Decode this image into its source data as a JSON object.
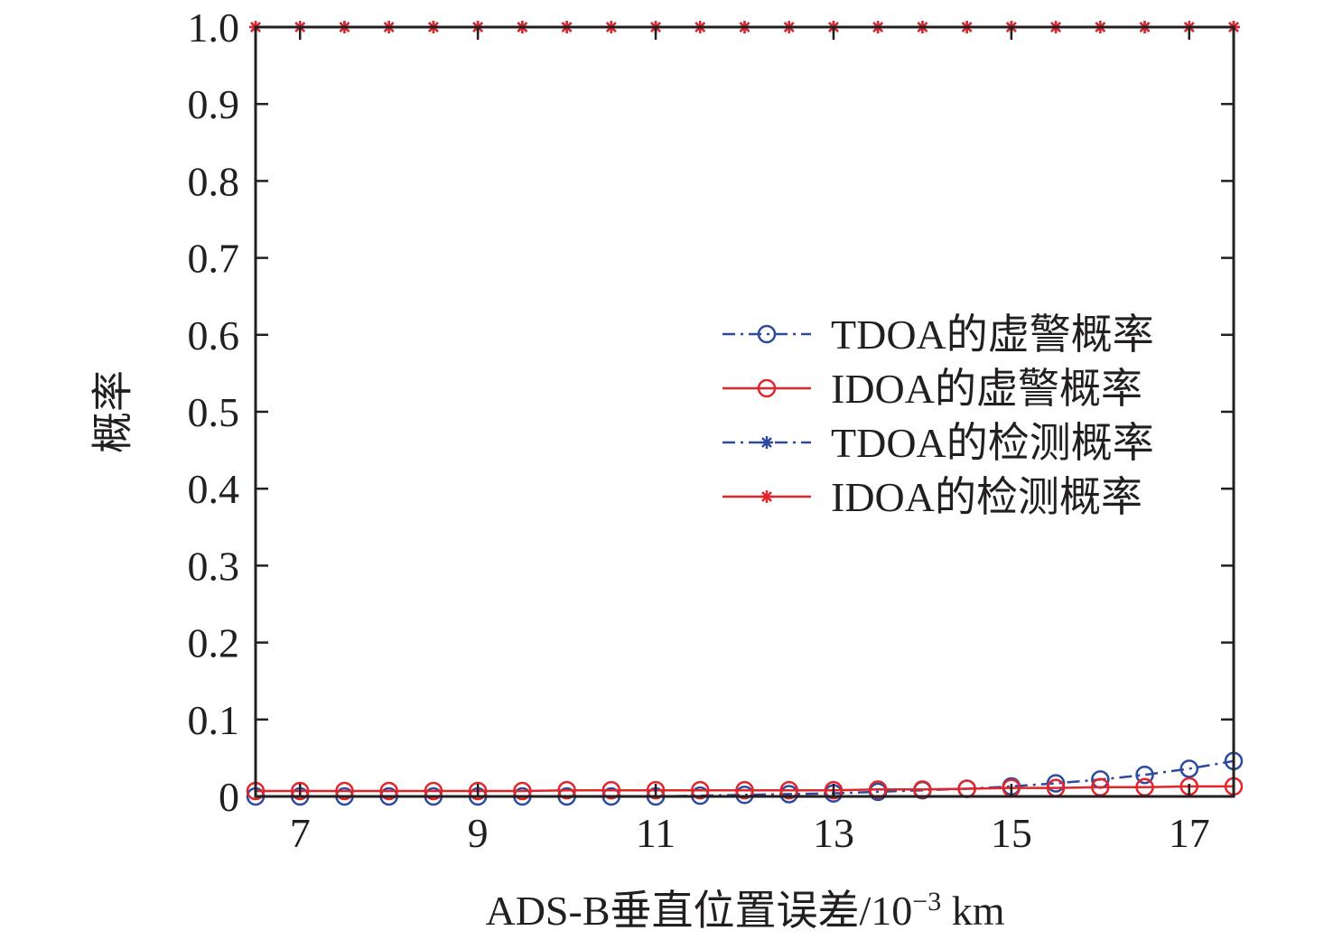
{
  "chart_data": {
    "type": "line",
    "xlabel": "ADS-B垂直位置误差/10",
    "xlabel_exponent": "−3",
    "xlabel_unit": " km",
    "ylabel": "概率",
    "xlim": [
      6.5,
      17.5
    ],
    "ylim": [
      0,
      1.0
    ],
    "x_ticks": [
      7,
      9,
      11,
      13,
      15,
      17
    ],
    "x_tick_labels": [
      "7",
      "9",
      "11",
      "13",
      "15",
      "17"
    ],
    "y_ticks": [
      0,
      0.1,
      0.2,
      0.3,
      0.4,
      0.5,
      0.6,
      0.7,
      0.8,
      0.9,
      1.0
    ],
    "y_tick_labels": [
      "0",
      "0.1",
      "0.2",
      "0.3",
      "0.4",
      "0.5",
      "0.6",
      "0.7",
      "0.8",
      "0.9",
      "1.0"
    ],
    "grid": false,
    "legend_position": "center-right",
    "x": [
      6.5,
      7,
      7.5,
      8,
      8.5,
      9,
      9.5,
      10,
      10.5,
      11,
      11.5,
      12,
      12.5,
      13,
      13.5,
      14,
      14.5,
      15,
      15.5,
      16,
      16.5,
      17,
      17.5
    ],
    "series": [
      {
        "name": "TDOA的虚警概率",
        "color": "#2e4a9e",
        "line_style": "dashdot",
        "marker": "circle",
        "values": [
          0,
          0,
          0,
          0,
          0,
          0,
          0,
          0,
          0,
          0,
          0.001,
          0.002,
          0.003,
          0.004,
          0.006,
          0.008,
          0.01,
          0.013,
          0.017,
          0.022,
          0.028,
          0.036,
          0.046
        ]
      },
      {
        "name": "IDOA的虚警概率",
        "color": "#e0262b",
        "line_style": "solid",
        "marker": "circle",
        "values": [
          0.007,
          0.007,
          0.007,
          0.007,
          0.007,
          0.007,
          0.007,
          0.008,
          0.008,
          0.008,
          0.008,
          0.008,
          0.008,
          0.008,
          0.009,
          0.009,
          0.01,
          0.011,
          0.011,
          0.012,
          0.012,
          0.013,
          0.013
        ]
      },
      {
        "name": "TDOA的检测概率",
        "color": "#2e4a9e",
        "line_style": "dashdot",
        "marker": "asterisk",
        "values": [
          1,
          1,
          1,
          1,
          1,
          1,
          1,
          1,
          1,
          1,
          1,
          1,
          1,
          1,
          1,
          1,
          1,
          1,
          1,
          1,
          1,
          1,
          1
        ]
      },
      {
        "name": "IDOA的检测概率",
        "color": "#e0262b",
        "line_style": "solid",
        "marker": "asterisk",
        "values": [
          1,
          1,
          1,
          1,
          1,
          1,
          1,
          1,
          1,
          1,
          1,
          1,
          1,
          1,
          1,
          1,
          1,
          1,
          1,
          1,
          1,
          1,
          1
        ]
      }
    ]
  }
}
